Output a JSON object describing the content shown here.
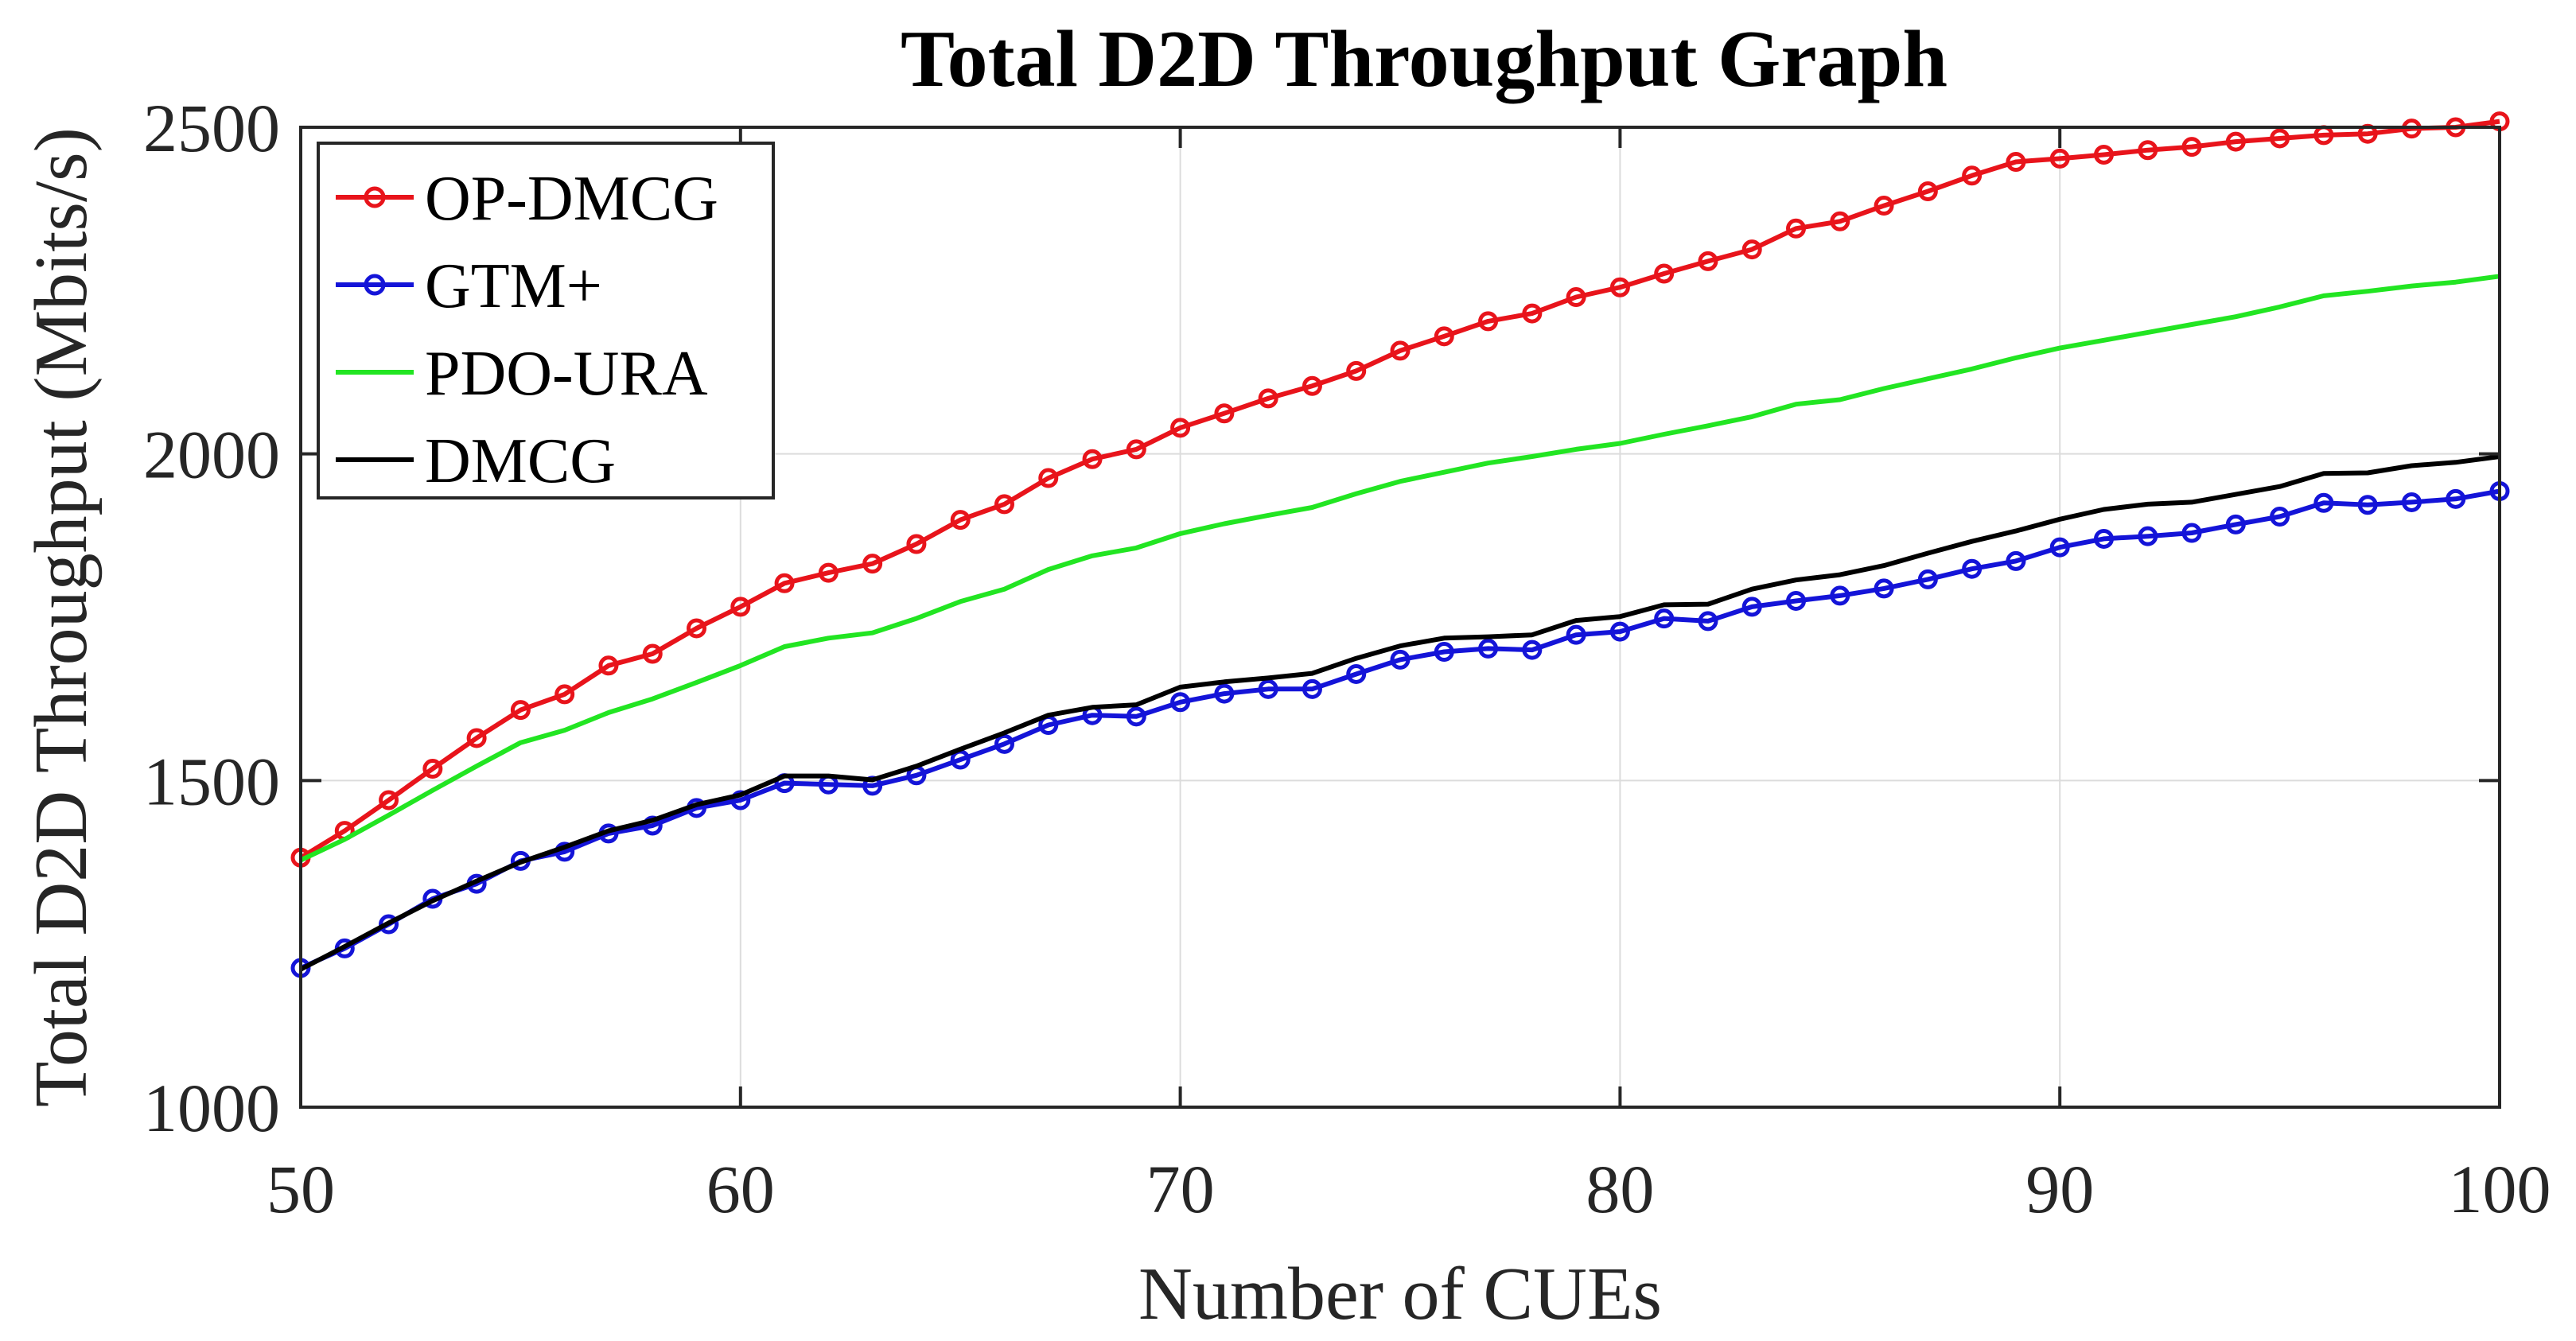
{
  "chart_data": {
    "type": "line",
    "title": "Total D2D Throughput Graph",
    "xlabel": "Number of CUEs",
    "ylabel": "Total D2D Throughput (Mbits/s)",
    "xlim": [
      50,
      100
    ],
    "ylim": [
      1000,
      2500
    ],
    "xticks": [
      50,
      60,
      70,
      80,
      90,
      100
    ],
    "yticks": [
      1000,
      1500,
      2000,
      2500
    ],
    "grid": true,
    "legend_position": "top-left",
    "x": [
      50,
      51,
      52,
      53,
      54,
      55,
      56,
      57,
      58,
      59,
      60,
      61,
      62,
      63,
      64,
      65,
      66,
      67,
      68,
      69,
      70,
      71,
      72,
      73,
      74,
      75,
      76,
      77,
      78,
      79,
      80,
      81,
      82,
      83,
      84,
      85,
      86,
      87,
      88,
      89,
      90,
      91,
      92,
      93,
      94,
      95,
      96,
      97,
      98,
      99,
      100
    ],
    "series": [
      {
        "name": "OP-DMCG",
        "color": "#e8141b",
        "marker": "circle",
        "values": [
          1382,
          1423,
          1470,
          1518,
          1565,
          1608,
          1632,
          1676,
          1694,
          1733,
          1766,
          1802,
          1818,
          1832,
          1862,
          1899,
          1923,
          1963,
          1992,
          2007,
          2040,
          2062,
          2085,
          2104,
          2127,
          2158,
          2180,
          2203,
          2215,
          2240,
          2255,
          2276,
          2295,
          2313,
          2345,
          2356,
          2380,
          2402,
          2426,
          2447,
          2452,
          2458,
          2465,
          2470,
          2478,
          2483,
          2488,
          2490,
          2498,
          2500,
          2509
        ]
      },
      {
        "name": "GTM+",
        "color": "#1414d8",
        "marker": "circle",
        "values": [
          1213,
          1243,
          1280,
          1319,
          1342,
          1377,
          1391,
          1419,
          1431,
          1458,
          1470,
          1496,
          1494,
          1492,
          1508,
          1532,
          1556,
          1585,
          1600,
          1598,
          1620,
          1633,
          1640,
          1640,
          1663,
          1685,
          1697,
          1702,
          1700,
          1723,
          1728,
          1748,
          1744,
          1766,
          1775,
          1783,
          1794,
          1808,
          1824,
          1836,
          1857,
          1870,
          1874,
          1879,
          1892,
          1904,
          1925,
          1922,
          1926,
          1931,
          1943
        ]
      },
      {
        "name": "PDO-URA",
        "color": "#22e522",
        "marker": "none",
        "values": [
          1378,
          1410,
          1447,
          1485,
          1522,
          1558,
          1577,
          1604,
          1625,
          1650,
          1676,
          1705,
          1718,
          1726,
          1748,
          1774,
          1793,
          1823,
          1844,
          1856,
          1878,
          1893,
          1906,
          1918,
          1939,
          1958,
          1972,
          1986,
          1996,
          2007,
          2016,
          2030,
          2043,
          2057,
          2076,
          2083,
          2100,
          2115,
          2130,
          2147,
          2162,
          2174,
          2186,
          2198,
          2210,
          2225,
          2242,
          2249,
          2257,
          2263,
          2272
        ]
      },
      {
        "name": "DMCG",
        "color": "#000000",
        "marker": "none",
        "values": [
          1211,
          1246,
          1282,
          1316,
          1346,
          1375,
          1398,
          1423,
          1439,
          1463,
          1478,
          1507,
          1507,
          1501,
          1522,
          1548,
          1573,
          1600,
          1612,
          1616,
          1643,
          1651,
          1657,
          1664,
          1687,
          1706,
          1718,
          1720,
          1723,
          1745,
          1751,
          1769,
          1770,
          1793,
          1807,
          1815,
          1829,
          1848,
          1866,
          1882,
          1900,
          1915,
          1923,
          1926,
          1938,
          1950,
          1970,
          1971,
          1982,
          1987,
          1996
        ]
      }
    ]
  }
}
